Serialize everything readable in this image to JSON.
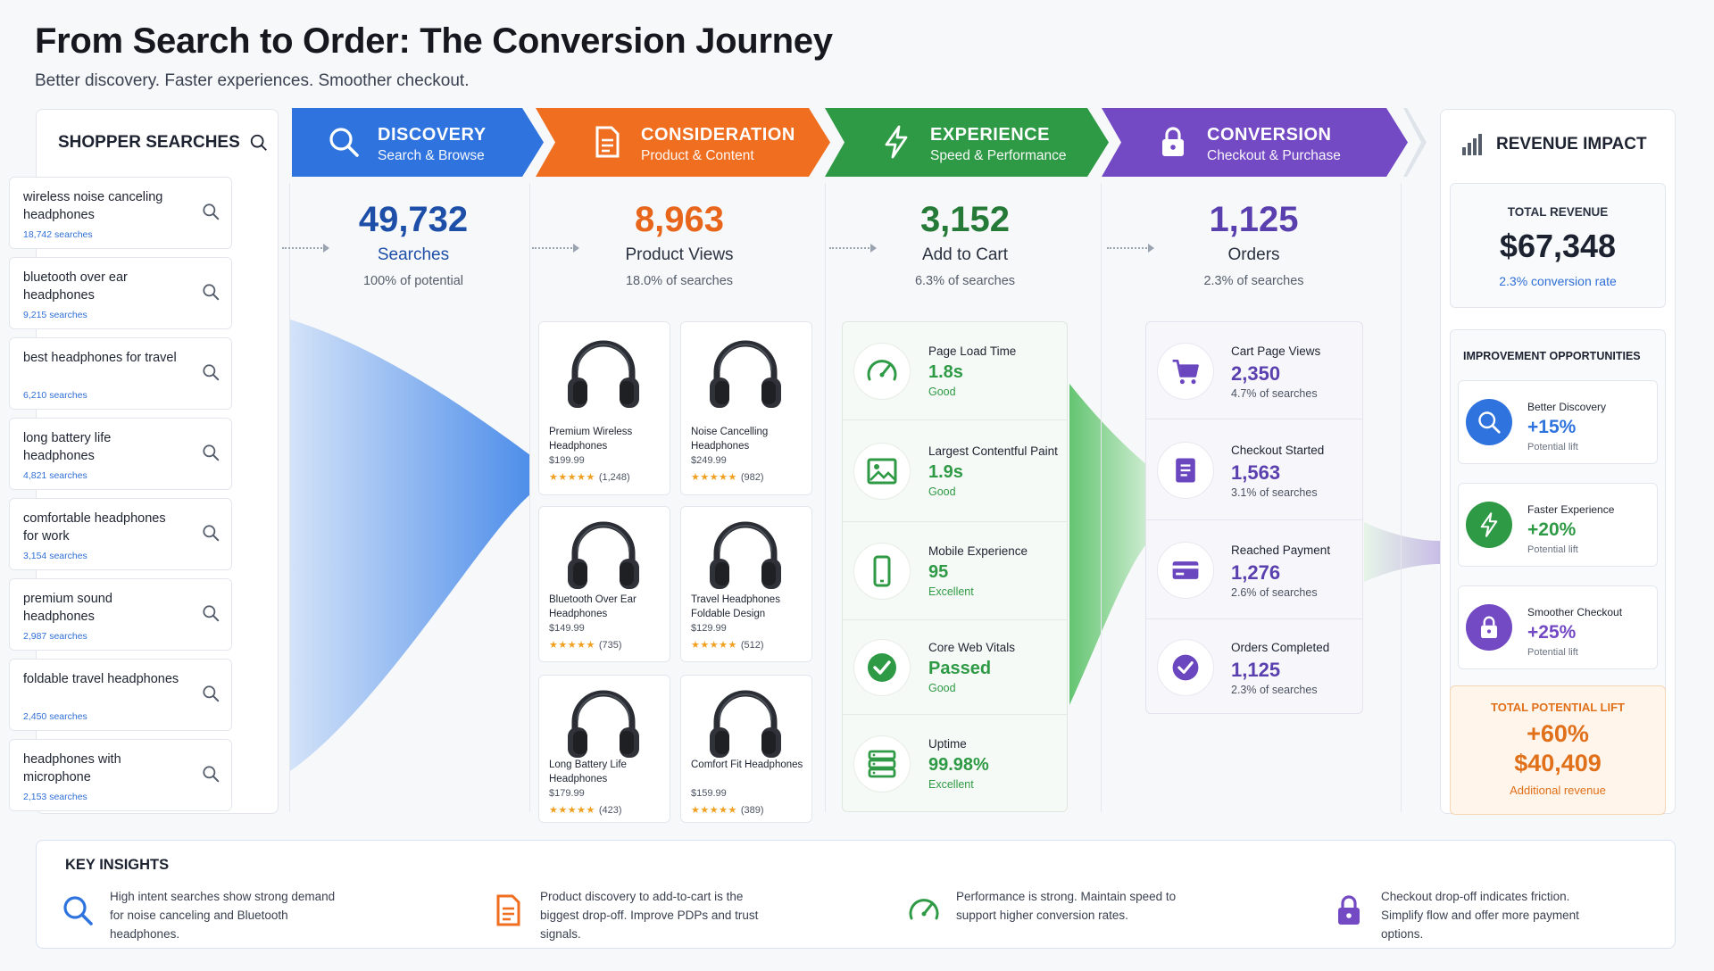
{
  "header": {
    "title": "From Search to Order: The Conversion Journey",
    "subtitle": "Better discovery. Faster experiences. Smoother checkout."
  },
  "searches": {
    "title": "SHOPPER SEARCHES",
    "items": [
      {
        "query": "wireless noise canceling headphones",
        "count": "18,742 searches"
      },
      {
        "query": "bluetooth over ear headphones",
        "count": "9,215 searches"
      },
      {
        "query": "best headphones for travel",
        "count": "6,210 searches"
      },
      {
        "query": "long battery life headphones",
        "count": "4,821 searches"
      },
      {
        "query": "comfortable headphones for work",
        "count": "3,154 searches"
      },
      {
        "query": "premium sound headphones",
        "count": "2,987 searches"
      },
      {
        "query": "foldable travel headphones",
        "count": "2,450 searches"
      },
      {
        "query": "headphones with microphone",
        "count": "2,153 searches"
      }
    ]
  },
  "stages": [
    {
      "title": "DISCOVERY",
      "subtitle": "Search & Browse",
      "color": "#2f74de",
      "icon": "search-icon",
      "value": "49,732",
      "label": "Searches",
      "pct": "100%",
      "pct_suffix": " of potential",
      "value_color": "#1d4fa8"
    },
    {
      "title": "CONSIDERATION",
      "subtitle": "Product & Content",
      "color": "#ef6e1f",
      "icon": "document-icon",
      "value": "8,963",
      "label": "Product Views",
      "pct": "18.0%",
      "pct_suffix": " of searches",
      "value_color": "#e8661b"
    },
    {
      "title": "EXPERIENCE",
      "subtitle": "Speed & Performance",
      "color": "#2f9a45",
      "icon": "lightning-icon",
      "value": "3,152",
      "label": "Add to Cart",
      "pct": "6.3%",
      "pct_suffix": " of searches",
      "value_color": "#247a36"
    },
    {
      "title": "CONVERSION",
      "subtitle": "Checkout & Purchase",
      "color": "#7349c4",
      "icon": "lock-icon",
      "value": "1,125",
      "label": "Orders",
      "pct": "2.3%",
      "pct_suffix": " of searches",
      "value_color": "#5a3fae"
    }
  ],
  "products": [
    {
      "name": "Premium Wireless Headphones",
      "price": "$199.99",
      "stars": "★★★★★",
      "reviews": "(1,248)"
    },
    {
      "name": "Noise Cancelling Headphones",
      "price": "$249.99",
      "stars": "★★★★★",
      "reviews": "(982)"
    },
    {
      "name": "Bluetooth Over Ear Headphones",
      "price": "$149.99",
      "stars": "★★★★★",
      "reviews": "(735)"
    },
    {
      "name": "Travel Headphones Foldable Design",
      "price": "$129.99",
      "stars": "★★★★★",
      "reviews": "(512)"
    },
    {
      "name": "Long Battery Life Headphones",
      "price": "$179.99",
      "stars": "★★★★★",
      "reviews": "(423)"
    },
    {
      "name": "Comfort Fit Headphones",
      "price": "$159.99",
      "stars": "★★★★★",
      "reviews": "(389)"
    }
  ],
  "experience": [
    {
      "label": "Page Load Time",
      "value": "1.8s",
      "status": "Good",
      "icon": "gauge-icon"
    },
    {
      "label": "Largest Contentful Paint",
      "value": "1.9s",
      "status": "Good",
      "icon": "image-icon"
    },
    {
      "label": "Mobile Experience",
      "value": "95",
      "status": "Excellent",
      "icon": "mobile-icon"
    },
    {
      "label": "Core Web Vitals",
      "value": "Passed",
      "status": "Good",
      "icon": "check-circle-icon"
    },
    {
      "label": "Uptime",
      "value": "99.98%",
      "status": "Excellent",
      "icon": "server-icon"
    }
  ],
  "conversion": [
    {
      "label": "Cart Page Views",
      "value": "2,350",
      "pct": "4.7% of searches",
      "icon": "cart-icon"
    },
    {
      "label": "Checkout Started",
      "value": "1,563",
      "pct": "3.1% of searches",
      "icon": "checklist-icon"
    },
    {
      "label": "Reached Payment",
      "value": "1,276",
      "pct": "2.6% of searches",
      "icon": "credit-card-icon"
    },
    {
      "label": "Orders Completed",
      "value": "1,125",
      "pct": "2.3% of searches",
      "icon": "check-circle-icon"
    }
  ],
  "revenue": {
    "title": "REVENUE IMPACT",
    "total_label": "TOTAL REVENUE",
    "total_value": "$67,348",
    "conversion_rate": "2.3% conversion rate",
    "opportunities_title": "IMPROVEMENT OPPORTUNITIES",
    "opportunities": [
      {
        "label": "Better Discovery",
        "value": "+15%",
        "note": "Potential lift",
        "color": "#2f74de",
        "icon": "search-icon"
      },
      {
        "label": "Faster Experience",
        "value": "+20%",
        "note": "Potential lift",
        "color": "#2f9a45",
        "icon": "lightning-icon"
      },
      {
        "label": "Smoother Checkout",
        "value": "+25%",
        "note": "Potential lift",
        "color": "#7349c4",
        "icon": "lock-icon"
      }
    ],
    "lift_label": "TOTAL POTENTIAL LIFT",
    "lift_pct": "+60%",
    "lift_value": "$40,409",
    "lift_note": "Additional revenue"
  },
  "insights": {
    "title": "KEY INSIGHTS",
    "items": [
      {
        "text": "High intent searches show strong demand for noise canceling and Bluetooth headphones.",
        "icon": "search-icon",
        "color": "#2f74de"
      },
      {
        "text": "Product discovery to add-to-cart is the biggest drop-off. Improve PDPs and trust signals.",
        "icon": "document-icon",
        "color": "#ef6e1f"
      },
      {
        "text": "Performance is strong. Maintain speed to support higher conversion rates.",
        "icon": "gauge-icon",
        "color": "#2f9a45"
      },
      {
        "text": "Checkout drop-off indicates friction. Simplify flow and offer more payment options.",
        "icon": "lock-icon",
        "color": "#7349c4"
      }
    ]
  }
}
